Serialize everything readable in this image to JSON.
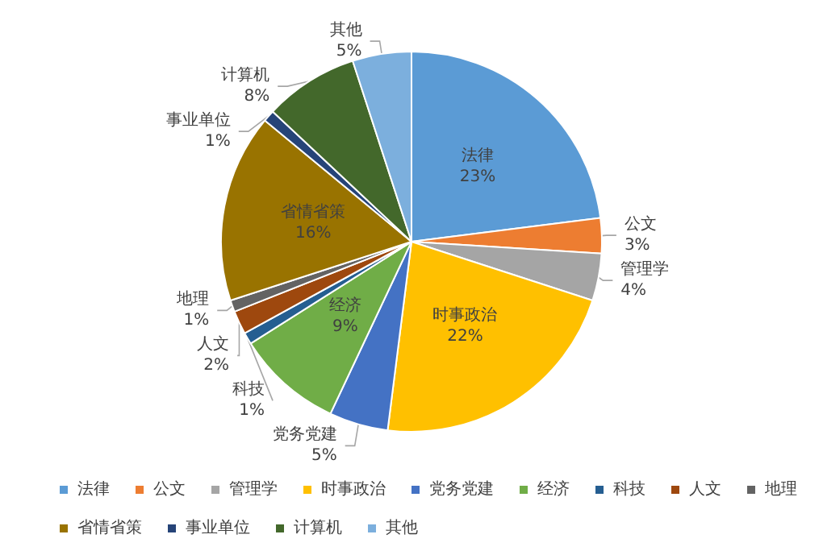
{
  "chart_data": {
    "type": "pie",
    "categories": [
      "法律",
      "公文",
      "管理学",
      "时事政治",
      "党务党建",
      "经济",
      "科技",
      "人文",
      "地理",
      "省情省策",
      "事业单位",
      "计算机",
      "其他"
    ],
    "values": [
      23,
      3,
      4,
      22,
      5,
      9,
      1,
      2,
      1,
      16,
      1,
      8,
      5
    ],
    "value_labels": [
      "23%",
      "3%",
      "4%",
      "22%",
      "5%",
      "9%",
      "1%",
      "2%",
      "1%",
      "16%",
      "1%",
      "8%",
      "5%"
    ],
    "colors": [
      "#5b9bd5",
      "#ed7d31",
      "#a5a5a5",
      "#ffc000",
      "#4472c4",
      "#70ad47",
      "#255e91",
      "#9e480e",
      "#636363",
      "#997300",
      "#264478",
      "#43682b",
      "#7cafdd"
    ],
    "legend": "bottom"
  }
}
